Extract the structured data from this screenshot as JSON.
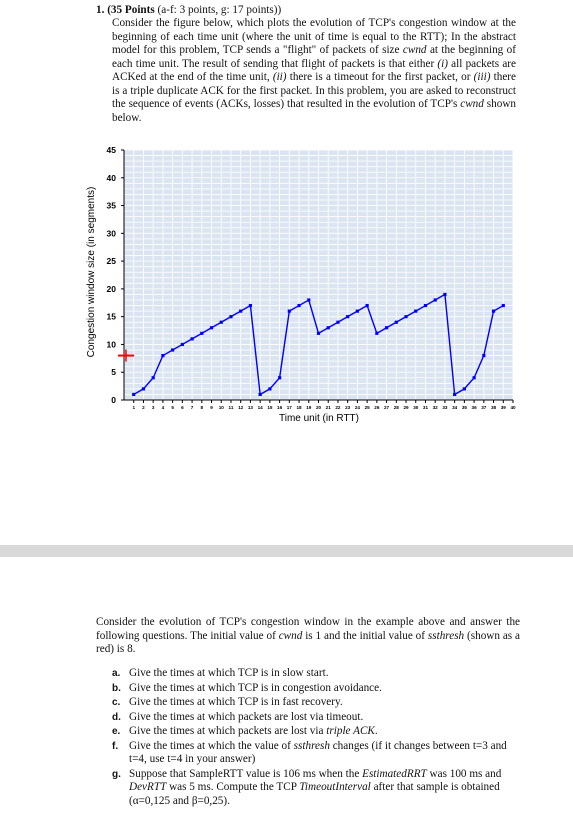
{
  "question": {
    "number": "1.",
    "points_title": "(35 Points",
    "points_detail": "(a-f: 3 points, g: 17 points))",
    "text_parts": [
      "Consider the figure below, which plots the evolution of TCP's congestion window at the beginning of each time unit (where the unit of time is equal to the RTT); In the abstract model for this problem, TCP sends a \"flight\" of packets of size ",
      "cwnd",
      " at the beginning of each time unit. The result of sending that flight of packets is that either ",
      "(i)",
      " all packets are ACKed at the end of the time unit, ",
      "(ii)",
      " there is a timeout for the first packet, or ",
      "(iii)",
      " there is a triple duplicate ACK for the first packet. In this problem, you are asked to reconstruct the sequence of events (ACKs, losses) that resulted in the evolution of TCP's ",
      "cwnd",
      " shown below."
    ]
  },
  "chart_data": {
    "type": "line",
    "xlabel": "Time unit (in RTT)",
    "ylabel": "Congestion window size (in segments)",
    "xlim": [
      0,
      40
    ],
    "ylim": [
      0,
      45
    ],
    "y_ticks": [
      0,
      5,
      10,
      15,
      20,
      25,
      30,
      35,
      40,
      45
    ],
    "x_ticks": [
      1,
      2,
      3,
      4,
      5,
      6,
      7,
      8,
      9,
      10,
      11,
      12,
      13,
      14,
      15,
      16,
      17,
      18,
      19,
      20,
      21,
      22,
      23,
      24,
      25,
      26,
      27,
      28,
      29,
      30,
      31,
      32,
      33,
      34,
      35,
      36,
      37,
      38,
      39,
      40
    ],
    "grid": true,
    "line_color": "#0000ff",
    "ssthresh_marker": {
      "y": 8,
      "color": "#ff0000"
    },
    "series": [
      {
        "x": [
          1,
          2,
          3,
          4,
          5,
          6,
          7,
          8,
          9,
          10,
          11,
          12,
          13,
          14,
          15,
          16,
          17,
          18,
          19,
          20,
          21,
          22,
          23,
          24,
          25,
          26,
          27,
          28,
          29,
          30,
          31,
          32,
          33,
          34,
          35,
          36,
          37,
          38,
          39
        ],
        "values": [
          1,
          2,
          4,
          8,
          9,
          10,
          11,
          12,
          13,
          14,
          15,
          16,
          17,
          1,
          2,
          4,
          16,
          17,
          18,
          12,
          13,
          14,
          15,
          16,
          17,
          12,
          13,
          14,
          15,
          16,
          17,
          18,
          19,
          1,
          2,
          4,
          8,
          16,
          17
        ]
      }
    ]
  },
  "followup": {
    "intro_parts": [
      "Consider the evolution of TCP's congestion window in the example above and answer the following questions. The initial value of ",
      "cwnd",
      " is 1 and the initial value of ",
      "ssthresh",
      " (shown as a red) is 8."
    ],
    "items": [
      {
        "label": "a.",
        "parts": [
          "Give the times at which TCP is in slow start."
        ]
      },
      {
        "label": "b.",
        "parts": [
          "Give the times at which TCP is in congestion avoidance."
        ]
      },
      {
        "label": "c.",
        "parts": [
          "Give the times at which TCP is in fast recovery."
        ]
      },
      {
        "label": "d.",
        "parts": [
          "Give the times at which packets are lost via timeout."
        ]
      },
      {
        "label": "e.",
        "parts": [
          "Give the times at which packets are lost via ",
          "triple ACK",
          "."
        ]
      },
      {
        "label": "f.",
        "parts": [
          "Give the times at which the value of ",
          "ssthresh",
          " changes (if it changes between t=3 and t=4, use t=4 in your answer)"
        ]
      },
      {
        "label": "g.",
        "parts": [
          "Suppose that SampleRTT value is 106 ms when the ",
          "EstimatedRRT",
          " was 100 ms and ",
          "DevRTT",
          " was 5 ms. Compute the TCP ",
          "TimeoutInterval",
          " after that sample is obtained (α=0,125 and β=0,25)."
        ]
      }
    ]
  }
}
